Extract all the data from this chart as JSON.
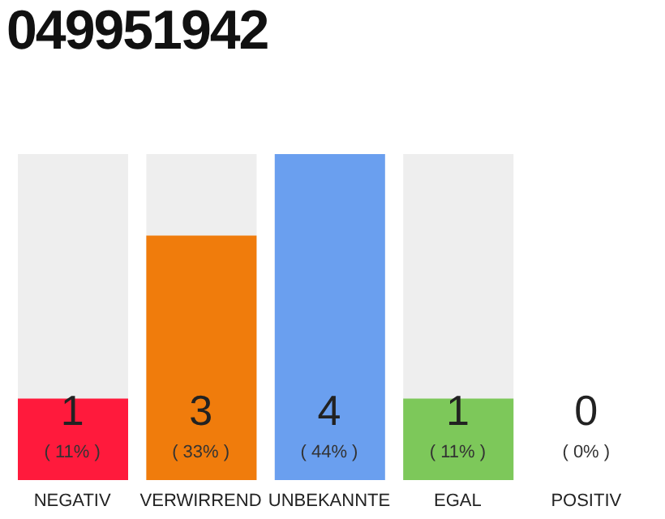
{
  "chart_data": {
    "type": "bar",
    "title": "049951942",
    "categories": [
      "NEGATIV",
      "VERWIRREND",
      "UNBEKANNTE",
      "EGAL",
      "POSITIV"
    ],
    "values": [
      1,
      3,
      4,
      1,
      0
    ],
    "colors": [
      "#ff1a3c",
      "#f07c0c",
      "#6a9fef",
      "#7dc85a",
      "#cccccc"
    ],
    "ylim": [
      0,
      4
    ],
    "tick_labels": "x",
    "data_labels": true,
    "annotations": [
      "( 11% )",
      "( 33% )",
      "( 44% )",
      "( 11% )",
      "( 0% )"
    ]
  }
}
